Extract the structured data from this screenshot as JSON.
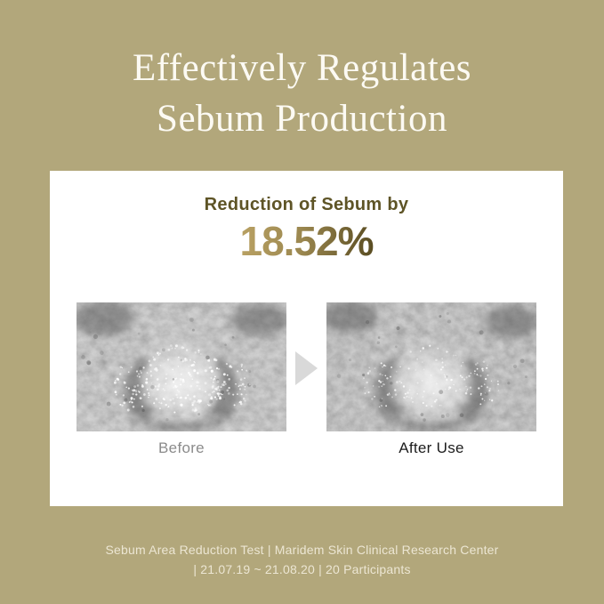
{
  "page": {
    "background_color": "#b2a77b",
    "heading": {
      "line1": "Effectively Regulates",
      "line2": "Sebum Production",
      "color": "#fcfaf3"
    }
  },
  "result_card": {
    "title": "Reduction of Sebum by",
    "title_color": "#5e5426",
    "percentage": "18.52%",
    "percentage_gradient": [
      "#b9a163",
      "#5a4d22"
    ],
    "comparison": {
      "before_label": "Before",
      "after_label": "After Use",
      "arrow_color": "#d9d9d9",
      "before_label_color": "#8b8b8b",
      "after_label_color": "#1c1c1c"
    }
  },
  "footnote": {
    "line1": "Sebum Area Reduction Test | Maridem Skin Clinical Research Center",
    "line2": "| 21.07.19 ~ 21.08.20 | 20 Participants"
  }
}
